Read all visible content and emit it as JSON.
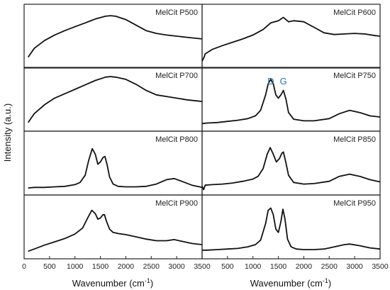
{
  "chart_data": {
    "type": "line",
    "layout": "3 rows x 2 columns of panels sharing axes",
    "ylabel": "Intensity (a.u.)",
    "xlabel_main": "Wavenumber (cm",
    "xlabel_sup": "-1",
    "xlabel_close": ")",
    "xlim": [
      0,
      3500
    ],
    "xticks": [
      0,
      500,
      1000,
      1500,
      2000,
      2500,
      3000,
      3500
    ],
    "xtick_labels_left": [
      "0",
      "500",
      "1000",
      "1500",
      "2000",
      "2500",
      "3000",
      "3500"
    ],
    "xtick_labels_right": [
      "500",
      "1000",
      "1500",
      "2000",
      "2500",
      "3000",
      "3500"
    ],
    "ylim": [
      0,
      1
    ],
    "y_tick_labels_shown": false,
    "grid": false,
    "legend": "none",
    "panels": [
      {
        "name": "MelCit P500",
        "col": 0,
        "row": 0,
        "x": [
          80,
          200,
          400,
          600,
          800,
          1000,
          1200,
          1400,
          1600,
          1700,
          1800,
          2000,
          2200,
          2400,
          2600,
          2800,
          3000,
          3200,
          3400,
          3500
        ],
        "y": [
          0.12,
          0.28,
          0.42,
          0.52,
          0.6,
          0.67,
          0.74,
          0.81,
          0.86,
          0.87,
          0.86,
          0.8,
          0.7,
          0.6,
          0.55,
          0.52,
          0.5,
          0.48,
          0.46,
          0.45
        ]
      },
      {
        "name": "MelCit P600",
        "col": 1,
        "row": 0,
        "x": [
          0,
          40,
          60,
          200,
          400,
          600,
          800,
          1000,
          1200,
          1350,
          1500,
          1600,
          1700,
          1800,
          2000,
          2200,
          2400,
          2600,
          2800,
          3000,
          3200,
          3400,
          3500
        ],
        "y": [
          0.05,
          0.12,
          0.18,
          0.26,
          0.33,
          0.39,
          0.45,
          0.52,
          0.62,
          0.74,
          0.78,
          0.84,
          0.76,
          0.78,
          0.76,
          0.66,
          0.56,
          0.53,
          0.54,
          0.55,
          0.54,
          0.51,
          0.5
        ]
      },
      {
        "name": "MelCit P700",
        "col": 0,
        "row": 1,
        "x": [
          80,
          200,
          400,
          600,
          800,
          1000,
          1200,
          1400,
          1600,
          1700,
          1800,
          2000,
          2200,
          2400,
          2600,
          2800,
          3000,
          3200,
          3400,
          3500
        ],
        "y": [
          0.08,
          0.24,
          0.4,
          0.52,
          0.6,
          0.68,
          0.76,
          0.84,
          0.9,
          0.91,
          0.9,
          0.86,
          0.77,
          0.66,
          0.58,
          0.55,
          0.52,
          0.49,
          0.47,
          0.46
        ]
      },
      {
        "name": "MelCit P750",
        "col": 1,
        "row": 1,
        "x": [
          0,
          100,
          300,
          500,
          700,
          900,
          1050,
          1150,
          1250,
          1300,
          1350,
          1400,
          1450,
          1500,
          1550,
          1600,
          1650,
          1700,
          1800,
          2000,
          2200,
          2500,
          2700,
          2900,
          3100,
          3300,
          3500
        ],
        "y": [
          0.06,
          0.07,
          0.08,
          0.1,
          0.12,
          0.15,
          0.2,
          0.3,
          0.58,
          0.78,
          0.86,
          0.78,
          0.58,
          0.52,
          0.58,
          0.66,
          0.5,
          0.26,
          0.14,
          0.11,
          0.11,
          0.15,
          0.24,
          0.3,
          0.26,
          0.2,
          0.18
        ]
      },
      {
        "name": "MelCit P800",
        "col": 0,
        "row": 2,
        "x": [
          80,
          200,
          400,
          600,
          800,
          1000,
          1100,
          1200,
          1270,
          1340,
          1400,
          1450,
          1500,
          1550,
          1590,
          1630,
          1680,
          1750,
          1850,
          2000,
          2200,
          2400,
          2600,
          2800,
          2950,
          3100,
          3300,
          3500
        ],
        "y": [
          0.05,
          0.06,
          0.06,
          0.07,
          0.08,
          0.11,
          0.15,
          0.28,
          0.55,
          0.76,
          0.66,
          0.48,
          0.52,
          0.6,
          0.62,
          0.48,
          0.25,
          0.12,
          0.08,
          0.07,
          0.07,
          0.08,
          0.12,
          0.2,
          0.22,
          0.17,
          0.1,
          0.06
        ]
      },
      {
        "name": "MelCit P850",
        "col": 1,
        "row": 2,
        "x": [
          0,
          30,
          60,
          200,
          400,
          600,
          800,
          1000,
          1100,
          1200,
          1280,
          1340,
          1400,
          1460,
          1520,
          1570,
          1600,
          1650,
          1700,
          1800,
          2000,
          2200,
          2500,
          2700,
          2900,
          3100,
          3300,
          3500
        ],
        "y": [
          0.08,
          0.02,
          0.1,
          0.11,
          0.12,
          0.14,
          0.17,
          0.21,
          0.26,
          0.4,
          0.66,
          0.78,
          0.66,
          0.52,
          0.58,
          0.68,
          0.7,
          0.5,
          0.28,
          0.15,
          0.12,
          0.13,
          0.17,
          0.26,
          0.3,
          0.26,
          0.2,
          0.16
        ]
      },
      {
        "name": "MelCit P900",
        "col": 0,
        "row": 3,
        "x": [
          80,
          200,
          400,
          600,
          800,
          1000,
          1150,
          1250,
          1330,
          1400,
          1450,
          1500,
          1550,
          1580,
          1620,
          1680,
          1750,
          1850,
          2000,
          2200,
          2400,
          2600,
          2800,
          2950,
          3100,
          3300,
          3500
        ],
        "y": [
          0.06,
          0.1,
          0.17,
          0.23,
          0.29,
          0.37,
          0.48,
          0.66,
          0.8,
          0.74,
          0.64,
          0.66,
          0.72,
          0.72,
          0.6,
          0.46,
          0.4,
          0.38,
          0.36,
          0.32,
          0.28,
          0.25,
          0.25,
          0.27,
          0.24,
          0.2,
          0.18
        ]
      },
      {
        "name": "MelCit P950",
        "col": 1,
        "row": 3,
        "x": [
          0,
          100,
          300,
          500,
          700,
          900,
          1050,
          1150,
          1250,
          1300,
          1350,
          1400,
          1450,
          1500,
          1550,
          1590,
          1630,
          1680,
          1750,
          1850,
          2000,
          2200,
          2400,
          2600,
          2800,
          2900,
          3100,
          3300,
          3500
        ],
        "y": [
          0.08,
          0.08,
          0.09,
          0.1,
          0.11,
          0.14,
          0.18,
          0.26,
          0.56,
          0.8,
          0.84,
          0.72,
          0.46,
          0.4,
          0.6,
          0.82,
          0.64,
          0.28,
          0.14,
          0.1,
          0.09,
          0.09,
          0.1,
          0.14,
          0.18,
          0.19,
          0.16,
          0.12,
          0.1
        ]
      }
    ],
    "annotations": [
      {
        "text": "D",
        "panel": "MelCit P750",
        "x": 1350,
        "color": "#1f6fb2"
      },
      {
        "text": "G",
        "panel": "MelCit P750",
        "x": 1600,
        "color": "#1f6fb2"
      }
    ]
  }
}
